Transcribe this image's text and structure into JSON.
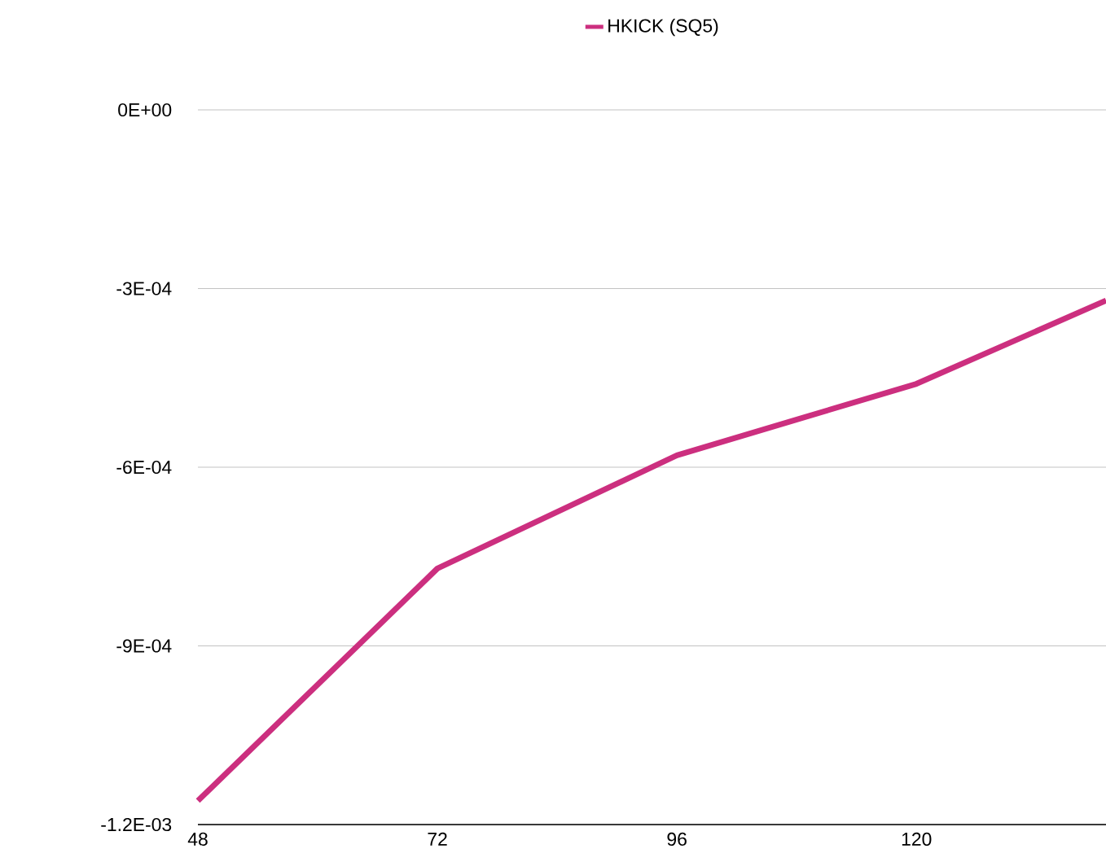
{
  "chart_data": {
    "type": "line",
    "x": [
      48,
      72,
      96,
      120,
      139
    ],
    "series": [
      {
        "name": "HKICK (SQ5)",
        "color": "#cc2f7f",
        "values": [
          -0.00116,
          -0.00077,
          -0.00058,
          -0.00046,
          -0.00032
        ]
      }
    ],
    "xlim": [
      48,
      139
    ],
    "xticks": [
      48,
      72,
      96,
      120
    ],
    "ylim": [
      -0.0012,
      0
    ],
    "yticks": [
      {
        "value": -0.0012,
        "label": "-1.2E-03"
      },
      {
        "value": -0.0009,
        "label": "-9E-04"
      },
      {
        "value": -0.0006,
        "label": "-6E-04"
      },
      {
        "value": -0.0003,
        "label": "-3E-04"
      },
      {
        "value": 0,
        "label": "0E+00"
      }
    ],
    "grid": "y",
    "legend": "top"
  }
}
